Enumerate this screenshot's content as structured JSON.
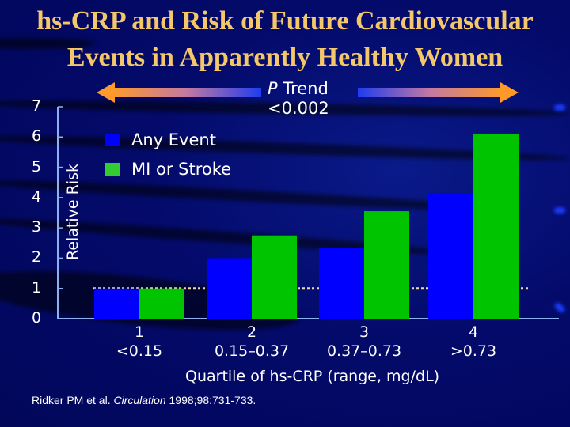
{
  "slide": {
    "title_line1": "hs-CRP and Risk of Future Cardiovascular",
    "title_line2": "Events in Apparently Healthy Women",
    "trend": {
      "p_label": "P",
      "trend_label": "Trend",
      "value": "<0.002"
    },
    "citation": {
      "authors": "Ridker PM et al.",
      "journal": "Circulation",
      "ref": "1998;98:731-733."
    }
  },
  "chart_data": {
    "type": "bar",
    "title": "hs-CRP and Risk of Future Cardiovascular Events in Apparently Healthy Women",
    "xlabel": "Quartile of hs-CRP (range, mg/dL)",
    "ylabel": "Relative Risk",
    "ylim": [
      0,
      7
    ],
    "yticks": [
      "0",
      "1",
      "2",
      "3",
      "4",
      "5",
      "6",
      "7"
    ],
    "categories": [
      {
        "quartile": "1",
        "range": "<0.15"
      },
      {
        "quartile": "2",
        "range": "0.15–0.37"
      },
      {
        "quartile": "3",
        "range": "0.37–0.73"
      },
      {
        "quartile": "4",
        "range": ">0.73"
      }
    ],
    "series": [
      {
        "name": "Any Event",
        "color": "#0000ff",
        "values": [
          1.0,
          2.0,
          2.35,
          4.15
        ]
      },
      {
        "name": "MI or Stroke",
        "color": "#00c400",
        "values": [
          1.0,
          2.75,
          3.55,
          6.1
        ]
      }
    ],
    "reference_line": {
      "value": 1.0,
      "style": "dotted",
      "color": "#f0d8b0"
    },
    "legend": "top-left",
    "grid": false,
    "annotation": "P Trend <0.002"
  }
}
